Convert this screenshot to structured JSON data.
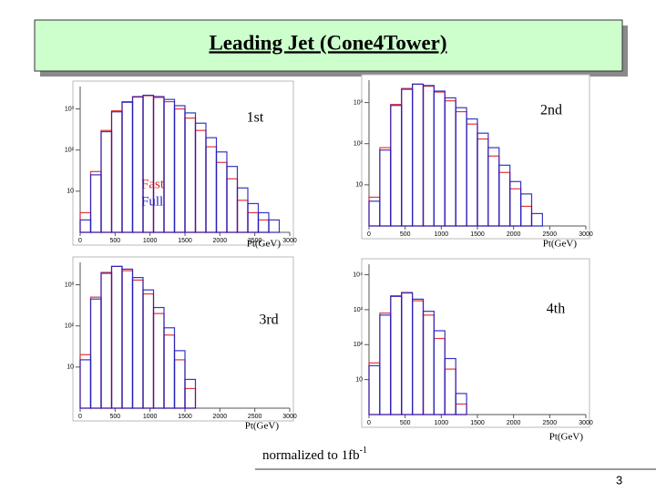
{
  "title": "Leading Jet (Cone4Tower)",
  "note": {
    "text": "normalized to 1fb",
    "superscript": "-1"
  },
  "page_number": "3",
  "chart_data": [
    {
      "type": "histogram",
      "label": "1st",
      "x_label": "Pt(GeV)",
      "log_y": true,
      "bins": [
        0,
        150,
        300,
        450,
        600,
        750,
        900,
        1050,
        1200,
        1350,
        1500,
        1650,
        1800,
        1950,
        2100,
        2250,
        2400,
        2550,
        2700,
        2850,
        3000
      ],
      "series": [
        {
          "name": "Fast",
          "color": "#e02020",
          "values": [
            3,
            30,
            300,
            900,
            1500,
            2000,
            2100,
            1900,
            1500,
            1000,
            600,
            300,
            120,
            50,
            20,
            6,
            3,
            2,
            1,
            0
          ]
        },
        {
          "name": "Full",
          "color": "#2020c0",
          "values": [
            2,
            25,
            280,
            850,
            1450,
            1950,
            2150,
            2000,
            1700,
            1200,
            800,
            450,
            200,
            90,
            40,
            12,
            5,
            3,
            2,
            0
          ]
        }
      ],
      "xlim": [
        0,
        3000
      ],
      "xticks": [
        0,
        500,
        1000,
        1500,
        2000,
        2500,
        3000
      ],
      "ylim": [
        1,
        3500
      ],
      "yticks": [
        10,
        {
          "value": 100,
          "label": "10²"
        },
        {
          "value": 1000,
          "label": "10³"
        }
      ]
    },
    {
      "type": "histogram",
      "label": "2nd",
      "x_label": "Pt(GeV)",
      "log_y": true,
      "bins": [
        0,
        150,
        300,
        450,
        600,
        750,
        900,
        1050,
        1200,
        1350,
        1500,
        1650,
        1800,
        1950,
        2100,
        2250,
        2400,
        2550,
        2700,
        2850,
        3000
      ],
      "series": [
        {
          "color": "#e02020",
          "values": [
            5,
            80,
            900,
            2200,
            2800,
            2500,
            1800,
            1100,
            600,
            300,
            130,
            50,
            20,
            8,
            3,
            1,
            0,
            0,
            0,
            0
          ]
        },
        {
          "color": "#2020c0",
          "values": [
            4,
            70,
            850,
            2100,
            2800,
            2600,
            1900,
            1300,
            750,
            400,
            180,
            80,
            30,
            12,
            6,
            2,
            1,
            0,
            0,
            0
          ]
        }
      ],
      "xlim": [
        0,
        3000
      ],
      "xticks": [
        0,
        500,
        1000,
        1500,
        2000,
        2500,
        3000
      ],
      "ylim": [
        1,
        3500
      ],
      "yticks": [
        10,
        {
          "value": 100,
          "label": "10²"
        },
        {
          "value": 1000,
          "label": "10³"
        }
      ]
    },
    {
      "type": "histogram",
      "label": "3rd",
      "x_label": "Pt(GeV)",
      "log_y": true,
      "bins": [
        0,
        150,
        300,
        450,
        600,
        750,
        900,
        1050,
        1200,
        1350,
        1500,
        1650,
        1800,
        1950,
        2100,
        2250,
        2400,
        2550,
        2700,
        2850,
        3000
      ],
      "series": [
        {
          "color": "#e02020",
          "values": [
            20,
            500,
            2000,
            2800,
            2200,
            1300,
            600,
            200,
            60,
            15,
            3,
            0,
            0,
            0,
            0,
            0,
            0,
            0,
            0,
            0
          ]
        },
        {
          "color": "#2020c0",
          "values": [
            15,
            450,
            1900,
            2800,
            2400,
            1500,
            750,
            280,
            90,
            25,
            5,
            0,
            0,
            0,
            0,
            0,
            0,
            0,
            0,
            0
          ]
        }
      ],
      "xlim": [
        0,
        3000
      ],
      "xticks": [
        0,
        500,
        1000,
        1500,
        2000,
        2500,
        3000
      ],
      "ylim": [
        1,
        3500
      ],
      "yticks": [
        10,
        {
          "value": 100,
          "label": "10²"
        },
        {
          "value": 1000,
          "label": "10³"
        }
      ]
    },
    {
      "type": "histogram",
      "label": "4th",
      "x_label": "Pt(GeV)",
      "log_y": true,
      "bins": [
        0,
        150,
        300,
        450,
        600,
        750,
        900,
        1050,
        1200,
        1350,
        1500,
        1650,
        1800,
        1950,
        2100,
        2250,
        2400,
        2550,
        2700,
        2850,
        3000
      ],
      "series": [
        {
          "color": "#e02020",
          "values": [
            30,
            800,
            2500,
            3000,
            1800,
            700,
            150,
            20,
            2,
            0,
            0,
            0,
            0,
            0,
            0,
            0,
            0,
            0,
            0,
            0
          ]
        },
        {
          "color": "#2020c0",
          "values": [
            25,
            700,
            2400,
            3100,
            2000,
            900,
            250,
            40,
            4,
            0,
            0,
            0,
            0,
            0,
            0,
            0,
            0,
            0,
            0,
            0
          ]
        }
      ],
      "xlim": [
        0,
        3000
      ],
      "xticks": [
        0,
        500,
        1000,
        1500,
        2000,
        2500,
        3000
      ],
      "ylim": [
        1,
        20000
      ],
      "yticks": [
        10,
        {
          "value": 100,
          "label": "10²"
        },
        {
          "value": 1000,
          "label": "10³"
        },
        {
          "value": 10000,
          "label": "10⁴"
        }
      ]
    }
  ]
}
